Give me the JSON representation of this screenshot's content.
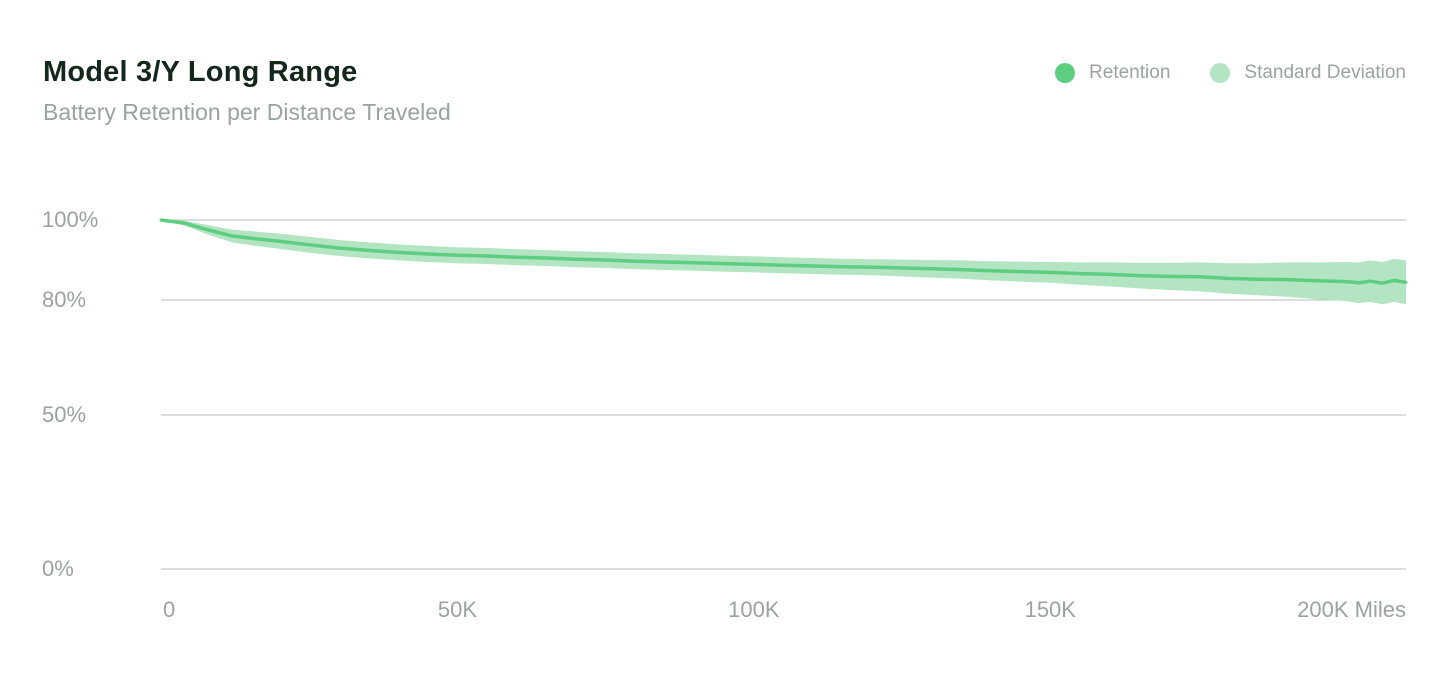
{
  "chart_data": {
    "type": "line",
    "title": "Model 3/Y Long Range",
    "subtitle": "Battery Retention per Distance Traveled",
    "xlabel": "",
    "ylabel": "",
    "y_ticks": [
      {
        "value": 100,
        "label": "100%"
      },
      {
        "value": 80,
        "label": "80%"
      },
      {
        "value": 50,
        "label": "50%"
      },
      {
        "value": 0,
        "label": "0%"
      }
    ],
    "x_ticks": [
      {
        "value": 0,
        "label": "0"
      },
      {
        "value": 50000,
        "label": "50K"
      },
      {
        "value": 100000,
        "label": "100K"
      },
      {
        "value": 150000,
        "label": "150K"
      },
      {
        "value": 200000,
        "label": "200K Miles"
      }
    ],
    "xlim": [
      0,
      210000
    ],
    "grid": true,
    "legend_position": "top-right",
    "series": [
      {
        "name": "Retention",
        "color": "#5dcd7f",
        "x": [
          0,
          4000,
          8000,
          12000,
          16000,
          20000,
          25000,
          30000,
          35000,
          40000,
          45000,
          50000,
          55000,
          60000,
          65000,
          70000,
          75000,
          80000,
          85000,
          90000,
          95000,
          100000,
          105000,
          110000,
          115000,
          120000,
          125000,
          130000,
          135000,
          140000,
          145000,
          150000,
          155000,
          160000,
          165000,
          170000,
          175000,
          180000,
          185000,
          190000,
          195000,
          200000,
          202000,
          204000,
          206000,
          208000,
          210000
        ],
        "values": [
          100,
          99.2,
          97.5,
          96.0,
          95.3,
          94.7,
          93.8,
          93.0,
          92.4,
          91.9,
          91.5,
          91.2,
          91.0,
          90.7,
          90.5,
          90.2,
          90.0,
          89.7,
          89.5,
          89.3,
          89.1,
          88.9,
          88.7,
          88.5,
          88.3,
          88.2,
          88.0,
          87.8,
          87.6,
          87.3,
          87.1,
          86.9,
          86.6,
          86.4,
          86.1,
          85.9,
          85.8,
          85.4,
          85.2,
          85.1,
          84.8,
          84.6,
          84.3,
          84.7,
          84.2,
          84.9,
          84.4
        ]
      },
      {
        "name": "Standard Deviation",
        "color": "#b3e5c3",
        "x": [
          0,
          4000,
          8000,
          12000,
          16000,
          20000,
          25000,
          30000,
          35000,
          40000,
          45000,
          50000,
          55000,
          60000,
          65000,
          70000,
          75000,
          80000,
          85000,
          90000,
          95000,
          100000,
          105000,
          110000,
          115000,
          120000,
          125000,
          130000,
          135000,
          140000,
          145000,
          150000,
          155000,
          160000,
          165000,
          170000,
          175000,
          180000,
          185000,
          190000,
          195000,
          200000,
          202000,
          204000,
          206000,
          208000,
          210000
        ],
        "spread": [
          0,
          0.6,
          1.2,
          1.6,
          1.8,
          1.9,
          2.0,
          2.0,
          2.0,
          2.0,
          2.0,
          2.0,
          2.0,
          2.0,
          2.0,
          2.0,
          2.0,
          2.0,
          2.0,
          2.0,
          2.0,
          2.0,
          2.0,
          2.0,
          2.0,
          2.0,
          2.1,
          2.2,
          2.3,
          2.4,
          2.5,
          2.6,
          2.8,
          3.0,
          3.2,
          3.4,
          3.6,
          3.8,
          4.0,
          4.3,
          4.6,
          4.9,
          5.1,
          5.2,
          5.3,
          5.4,
          5.5
        ]
      }
    ]
  },
  "legend": {
    "retention_label": "Retention",
    "retention_color": "#5dcd7f",
    "stddev_label": "Standard Deviation",
    "stddev_color": "#b3e5c3"
  }
}
